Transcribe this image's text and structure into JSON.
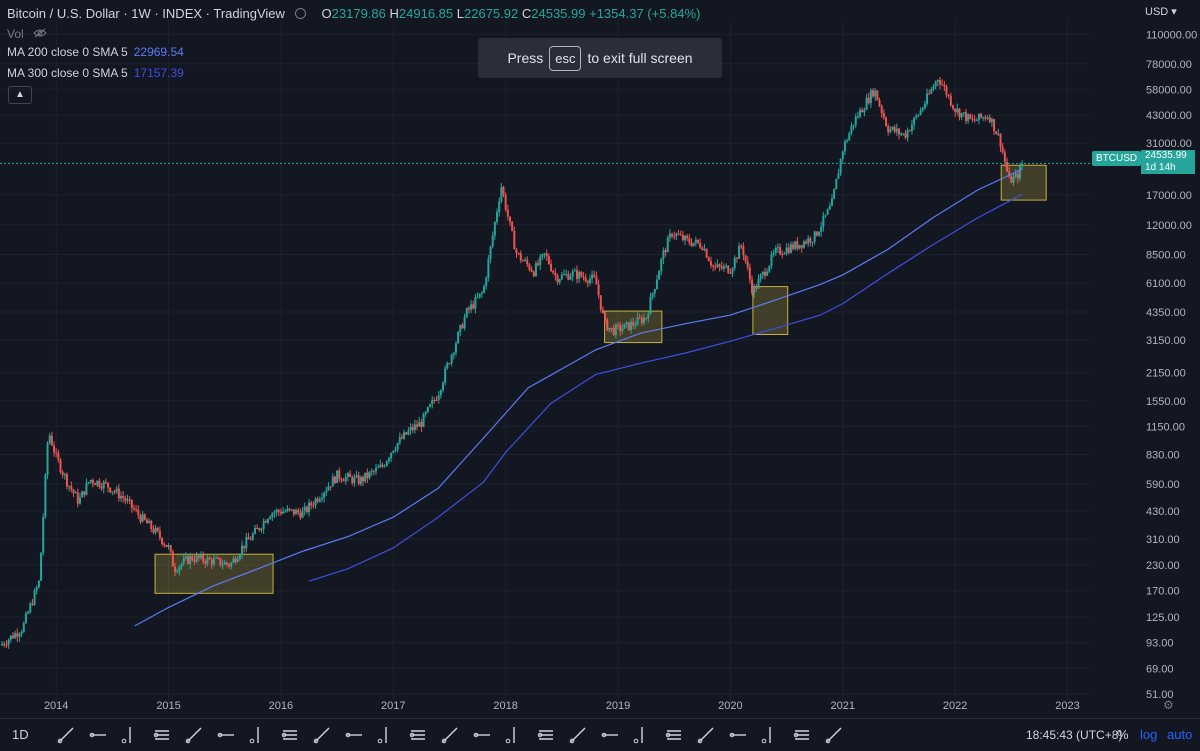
{
  "legend": {
    "title": "Bitcoin / U.S. Dollar · 1W · INDEX · TradingView",
    "ohlc": {
      "o_label": "O",
      "o": "23179.86",
      "h_label": "H",
      "h": "24916.85",
      "l_label": "L",
      "l": "22675.92",
      "c_label": "C",
      "c": "24535.99",
      "change": "+1354.37 (+5.84%)"
    },
    "vol": "Vol",
    "ma200": {
      "label": "MA 200 close 0 SMA 5",
      "value": "22969.54"
    },
    "ma300": {
      "label": "MA 300 close 0 SMA 5",
      "value": "17157.39"
    },
    "collapse_icon": "chevron-up-icon"
  },
  "fullscreen_banner": {
    "press": "Press",
    "key": "esc",
    "message": "to exit full screen"
  },
  "price_scale": {
    "currency": "USD",
    "labels": [
      "110000.00",
      "78000.00",
      "58000.00",
      "43000.00",
      "31000.00",
      "17000.00",
      "12000.00",
      "8500.00",
      "6100.00",
      "4350.00",
      "3150.00",
      "2150.00",
      "1550.00",
      "1150.00",
      "830.00",
      "590.00",
      "430.00",
      "310.00",
      "230.00",
      "170.00",
      "125.00",
      "93.00",
      "69.00",
      "51.00"
    ]
  },
  "symbol_tag": "BTCUSD",
  "last_price": {
    "price": "24535.99",
    "countdown": "1d 14h"
  },
  "time_scale": {
    "labels": [
      "2014",
      "2015",
      "2016",
      "2017",
      "2018",
      "2019",
      "2020",
      "2021",
      "2022",
      "2023"
    ]
  },
  "colors": {
    "background": "#131722",
    "up": "#26a69a",
    "down": "#ef5350",
    "ma200": "#5b7cf5",
    "ma300": "#3f4fe0",
    "highlight": "#c8b23a"
  },
  "chart_data": {
    "type": "candlestick",
    "scale": "log",
    "interval": "1W",
    "ylim": [
      45,
      130000
    ],
    "xlim": [
      2013.5,
      2023.2
    ],
    "series": [
      {
        "name": "Bitcoin / U.S. Dollar",
        "x": [
          2013.5,
          2013.7,
          2013.85,
          2013.93,
          2014.0,
          2014.1,
          2014.2,
          2014.3,
          2014.45,
          2014.6,
          2014.75,
          2014.9,
          2015.0,
          2015.05,
          2015.2,
          2015.4,
          2015.55,
          2015.65,
          2015.8,
          2015.9,
          2016.0,
          2016.2,
          2016.4,
          2016.5,
          2016.7,
          2016.9,
          2017.0,
          2017.15,
          2017.25,
          2017.4,
          2017.5,
          2017.65,
          2017.8,
          2017.96,
          2018.05,
          2018.1,
          2018.25,
          2018.35,
          2018.45,
          2018.6,
          2018.8,
          2018.88,
          2018.95,
          2019.1,
          2019.25,
          2019.4,
          2019.48,
          2019.6,
          2019.75,
          2019.85,
          2020.0,
          2020.1,
          2020.2,
          2020.4,
          2020.6,
          2020.75,
          2020.9,
          2021.0,
          2021.1,
          2021.28,
          2021.4,
          2021.55,
          2021.7,
          2021.85,
          2022.0,
          2022.15,
          2022.3,
          2022.4,
          2022.48,
          2022.55,
          2022.6
        ],
        "y": [
          90,
          110,
          190,
          1100,
          800,
          600,
          480,
          620,
          580,
          500,
          400,
          330,
          280,
          220,
          250,
          240,
          230,
          280,
          350,
          420,
          430,
          420,
          560,
          650,
          610,
          720,
          900,
          1100,
          1200,
          1700,
          2500,
          4300,
          5500,
          19000,
          11000,
          8500,
          7000,
          8500,
          6500,
          6800,
          6300,
          3800,
          3500,
          3700,
          4100,
          8500,
          11000,
          10000,
          9500,
          7300,
          7200,
          9500,
          5500,
          8700,
          9500,
          10500,
          15000,
          29000,
          40000,
          58000,
          37000,
          34000,
          46000,
          67000,
          46000,
          40000,
          43000,
          32000,
          20000,
          21000,
          24535.99
        ]
      },
      {
        "name": "MA 200 close 0 SMA 5",
        "x": [
          2014.7,
          2015.0,
          2015.4,
          2015.8,
          2016.2,
          2016.6,
          2017.0,
          2017.4,
          2017.8,
          2018.2,
          2018.8,
          2019.2,
          2019.6,
          2020.0,
          2020.4,
          2020.8,
          2021.0,
          2021.4,
          2021.8,
          2022.2,
          2022.6
        ],
        "y": [
          113,
          140,
          180,
          220,
          270,
          320,
          400,
          560,
          1000,
          1800,
          2800,
          3400,
          3800,
          4200,
          5000,
          6000,
          6700,
          9000,
          13000,
          18000,
          22969.54
        ]
      },
      {
        "name": "MA 300 close 0 SMA 5",
        "x": [
          2016.25,
          2016.6,
          2017.0,
          2017.4,
          2017.8,
          2018.0,
          2018.4,
          2018.8,
          2019.2,
          2019.6,
          2020.0,
          2020.4,
          2020.8,
          2021.0,
          2021.4,
          2021.8,
          2022.2,
          2022.6
        ],
        "y": [
          190,
          220,
          280,
          400,
          600,
          850,
          1500,
          2100,
          2400,
          2700,
          3100,
          3600,
          4200,
          4800,
          6800,
          9500,
          13000,
          17157.39
        ]
      }
    ],
    "highlight_boxes": [
      {
        "x0": 2014.88,
        "x1": 2015.93,
        "y0": 165,
        "y1": 260
      },
      {
        "x0": 2018.88,
        "x1": 2019.39,
        "y0": 3050,
        "y1": 4400
      },
      {
        "x0": 2020.2,
        "x1": 2020.51,
        "y0": 3350,
        "y1": 5850
      },
      {
        "x0": 2022.41,
        "x1": 2022.81,
        "y0": 16000,
        "y1": 24000
      }
    ]
  },
  "drawing_toolbar": {
    "timeframe": "1D",
    "tools": [
      "trend-line-icon",
      "horizontal-line-icon",
      "vertical-line-icon",
      "parallel-channel-icon",
      "rectangle-icon",
      "curve-icon",
      "brush-icon",
      "bar-pattern-icon",
      "price-range-icon",
      "text-icon",
      "path-icon",
      "note-icon",
      "callout-icon",
      "arrow-icon",
      "projection-icon",
      "ruler-icon",
      "fib-retracement-icon",
      "fib-fan-icon",
      "fib-arc-icon",
      "gann-box-icon",
      "fib-channel-icon",
      "pitchfork-icon",
      "arc-icon",
      "xabcd-pattern-icon",
      "elliott-wave-icon"
    ],
    "clock": "18:45:43 (UTC+8)",
    "percent": "%",
    "log": "log",
    "auto": "auto",
    "settings_icon": "gear-icon"
  }
}
